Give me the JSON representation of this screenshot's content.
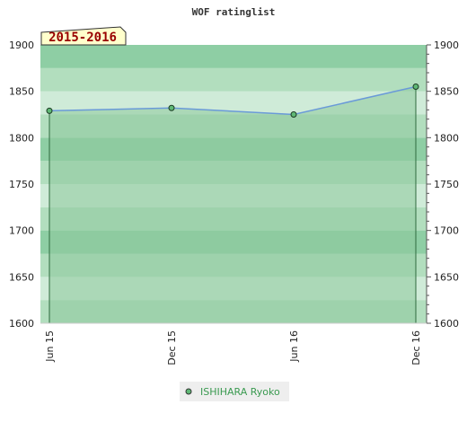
{
  "chart_data": {
    "type": "area",
    "title": "WOF ratinglist",
    "season_label": "2015-2016",
    "x": [
      "Jun 15",
      "Dec 15",
      "Jun 16",
      "Dec 16"
    ],
    "series": [
      {
        "name": "ISHIHARA Ryoko",
        "values": [
          1829,
          1832,
          1825,
          1855
        ]
      }
    ],
    "ylim": [
      1600,
      1900
    ],
    "yticks": [
      1600,
      1650,
      1700,
      1750,
      1800,
      1850,
      1900
    ],
    "grid": true,
    "legend": "bottom-center",
    "colors": {
      "line": "#6a9ad8",
      "area": "#8ec99c",
      "marker_fill": "#5fb875",
      "band_light": "#c9e8d2",
      "band_mid": "#a7d8b4",
      "band_dark": "#7cc595",
      "season_bg": "#ffffcc"
    }
  }
}
